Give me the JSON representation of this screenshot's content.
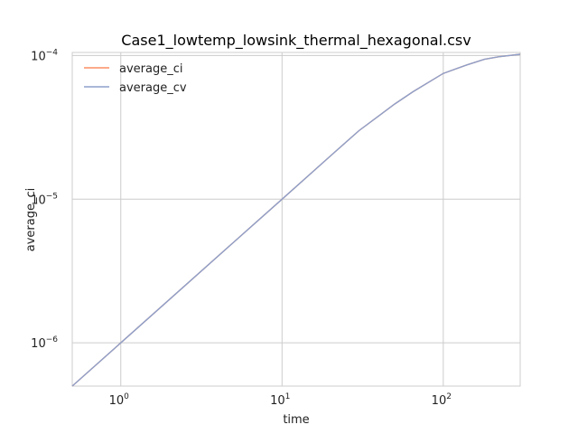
{
  "chart_data": {
    "type": "line",
    "title": "Case1_lowtemp_lowsink_thermal_hexagonal.csv",
    "xlabel": "time",
    "ylabel": "average_ci",
    "xscale": "log",
    "yscale": "log",
    "xlim": [
      0.5,
      300
    ],
    "ylim": [
      5e-07,
      0.000105
    ],
    "grid": true,
    "legend_position": "top-left",
    "x_ticks": [
      {
        "value": 1,
        "base": "10",
        "exp": "0"
      },
      {
        "value": 10,
        "base": "10",
        "exp": "1"
      },
      {
        "value": 100,
        "base": "10",
        "exp": "2"
      }
    ],
    "y_ticks": [
      {
        "value": 1e-06,
        "base": "10",
        "exp": "−6"
      },
      {
        "value": 1e-05,
        "base": "10",
        "exp": "−5"
      },
      {
        "value": 0.0001,
        "base": "10",
        "exp": "−4"
      }
    ],
    "series": [
      {
        "name": "average_ci",
        "color": "#fc8d62",
        "x": [
          0.5,
          1,
          2,
          5,
          10,
          20,
          30,
          50,
          65,
          100,
          140,
          180,
          220,
          300
        ],
        "y": [
          5e-07,
          1e-06,
          2e-06,
          5e-06,
          1e-05,
          2e-05,
          3e-05,
          4.6e-05,
          5.6e-05,
          7.5e-05,
          8.6e-05,
          9.4e-05,
          9.8e-05,
          0.000102
        ]
      },
      {
        "name": "average_cv",
        "color": "#8da0cb",
        "x": [
          0.5,
          1,
          2,
          5,
          10,
          20,
          30,
          50,
          65,
          100,
          140,
          180,
          220,
          300
        ],
        "y": [
          5e-07,
          1e-06,
          2e-06,
          5e-06,
          1e-05,
          2e-05,
          3e-05,
          4.6e-05,
          5.6e-05,
          7.5e-05,
          8.6e-05,
          9.4e-05,
          9.8e-05,
          0.000102
        ]
      }
    ]
  }
}
